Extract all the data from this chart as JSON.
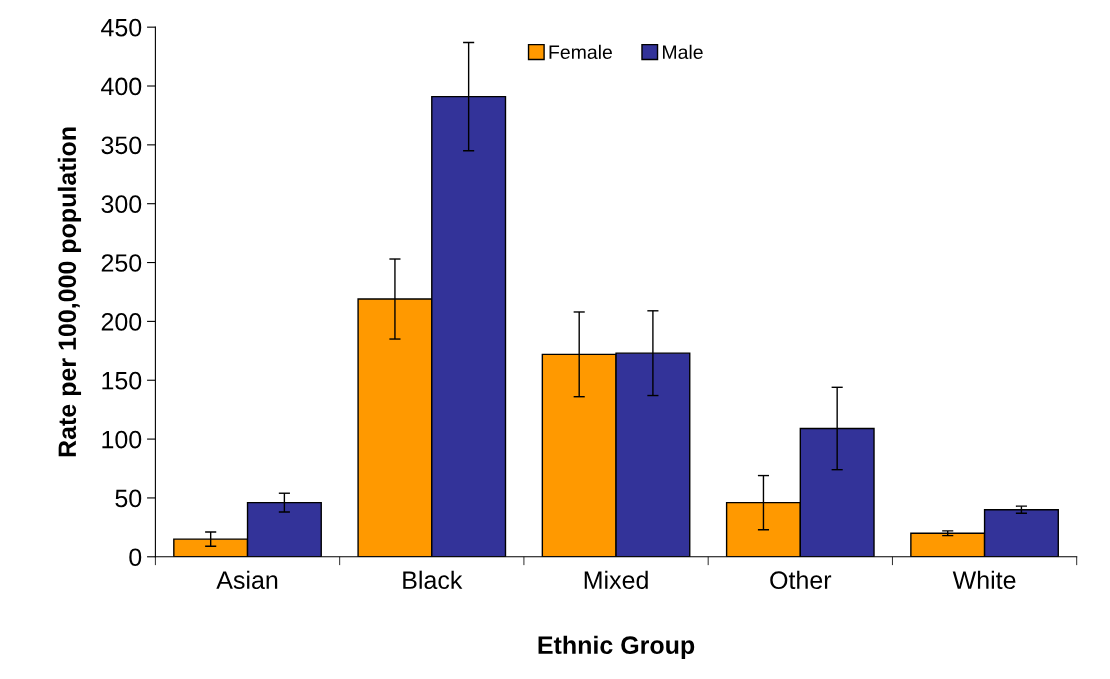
{
  "chart_data": {
    "type": "bar",
    "xlabel": "Ethnic Group",
    "ylabel": "Rate per 100,000 population",
    "categories": [
      "Asian",
      "Black",
      "Mixed",
      "Other",
      "White"
    ],
    "series": [
      {
        "name": "Female",
        "color": "#ff9900",
        "values": [
          15,
          219,
          172,
          46,
          20
        ],
        "errors": [
          6,
          34,
          36,
          23,
          2
        ]
      },
      {
        "name": "Male",
        "color": "#333399",
        "values": [
          46,
          391,
          173,
          109,
          40
        ],
        "errors": [
          8,
          46,
          36,
          35,
          3
        ]
      }
    ],
    "ylim": [
      0,
      450
    ],
    "yticks": [
      0,
      50,
      100,
      150,
      200,
      250,
      300,
      350,
      400,
      450
    ],
    "grid": false,
    "legend": "top"
  }
}
